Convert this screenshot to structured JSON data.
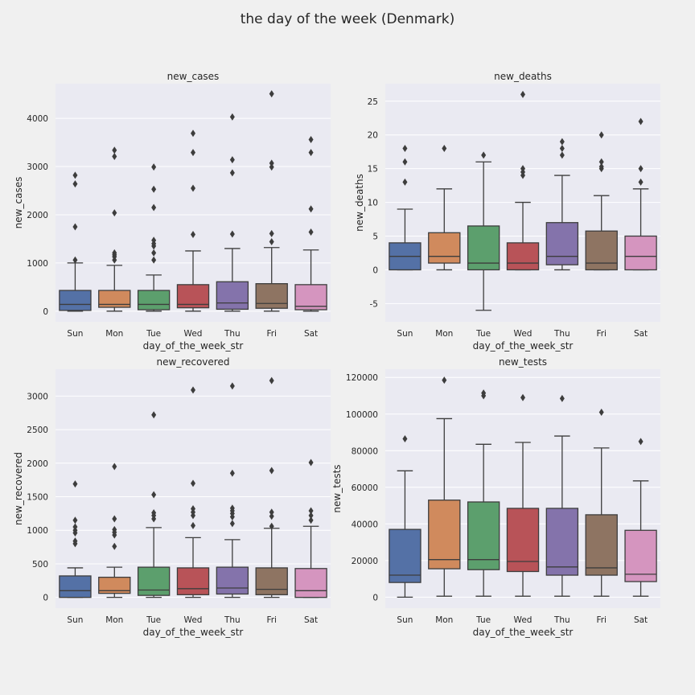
{
  "figure": {
    "title": "the day of the week (Denmark)"
  },
  "chart_data": [
    {
      "type": "box",
      "title": "new_cases",
      "xlabel": "day_of_the_week_str",
      "ylabel": "new_cases",
      "ylim": [
        -220,
        4720
      ],
      "yticks": [
        0,
        1000,
        2000,
        3000,
        4000
      ],
      "categories": [
        "Sun",
        "Mon",
        "Tue",
        "Wed",
        "Thu",
        "Fri",
        "Sat"
      ],
      "colors": [
        "#5471a6",
        "#d08a5d",
        "#5c9f6d",
        "#b85358",
        "#8473ab",
        "#8e7462",
        "#d595bf"
      ],
      "boxes": [
        {
          "whislo": 0,
          "q1": 15,
          "median": 140,
          "q3": 430,
          "whishi": 1000,
          "fliers": [
            1060,
            1750,
            2640,
            2820
          ]
        },
        {
          "whislo": 0,
          "q1": 80,
          "median": 140,
          "q3": 430,
          "whishi": 950,
          "fliers": [
            1060,
            1130,
            1170,
            1210,
            2040,
            3210,
            3340
          ]
        },
        {
          "whislo": 0,
          "q1": 30,
          "median": 140,
          "q3": 430,
          "whishi": 750,
          "fliers": [
            1060,
            1210,
            1350,
            1400,
            1470,
            2150,
            2530,
            2990
          ]
        },
        {
          "whislo": 0,
          "q1": 70,
          "median": 140,
          "q3": 550,
          "whishi": 1250,
          "fliers": [
            1590,
            2550,
            3290,
            3690
          ]
        },
        {
          "whislo": 0,
          "q1": 40,
          "median": 170,
          "q3": 610,
          "whishi": 1300,
          "fliers": [
            1600,
            2870,
            3140,
            4030
          ]
        },
        {
          "whislo": 0,
          "q1": 60,
          "median": 160,
          "q3": 570,
          "whishi": 1320,
          "fliers": [
            1440,
            1610,
            2990,
            3070,
            4510
          ]
        },
        {
          "whislo": 0,
          "q1": 30,
          "median": 100,
          "q3": 550,
          "whishi": 1270,
          "fliers": [
            1640,
            2120,
            3290,
            3560
          ]
        }
      ]
    },
    {
      "type": "box",
      "title": "new_deaths",
      "xlabel": "day_of_the_week_str",
      "ylabel": "new_deaths",
      "ylim": [
        -7.7,
        27.6
      ],
      "yticks": [
        -5,
        0,
        5,
        10,
        15,
        20,
        25
      ],
      "categories": [
        "Sun",
        "Mon",
        "Tue",
        "Wed",
        "Thu",
        "Fri",
        "Sat"
      ],
      "colors": [
        "#5471a6",
        "#d08a5d",
        "#5c9f6d",
        "#b85358",
        "#8473ab",
        "#8e7462",
        "#d595bf"
      ],
      "boxes": [
        {
          "whislo": 0,
          "q1": 0,
          "median": 2,
          "q3": 4,
          "whishi": 9,
          "fliers": [
            13,
            16,
            18
          ]
        },
        {
          "whislo": 0,
          "q1": 1,
          "median": 2,
          "q3": 5.5,
          "whishi": 12,
          "fliers": [
            18
          ]
        },
        {
          "whislo": -6,
          "q1": 0,
          "median": 1,
          "q3": 6.5,
          "whishi": 16,
          "fliers": [
            17
          ]
        },
        {
          "whislo": 0,
          "q1": 0,
          "median": 1,
          "q3": 4,
          "whishi": 10,
          "fliers": [
            14,
            14.5,
            15,
            26
          ]
        },
        {
          "whislo": 0,
          "q1": 0.75,
          "median": 2,
          "q3": 7,
          "whishi": 14,
          "fliers": [
            17,
            18,
            19
          ]
        },
        {
          "whislo": 0,
          "q1": 0,
          "median": 1,
          "q3": 5.75,
          "whishi": 11,
          "fliers": [
            15,
            15.3,
            16,
            20
          ]
        },
        {
          "whislo": 0,
          "q1": 0,
          "median": 2,
          "q3": 5,
          "whishi": 12,
          "fliers": [
            13,
            15,
            22
          ]
        }
      ]
    },
    {
      "type": "box",
      "title": "new_recovered",
      "xlabel": "day_of_the_week_str",
      "ylabel": "new_recovered",
      "ylim": [
        -160,
        3400
      ],
      "yticks": [
        0,
        500,
        1000,
        1500,
        2000,
        2500,
        3000
      ],
      "categories": [
        "Sun",
        "Mon",
        "Tue",
        "Wed",
        "Thu",
        "Fri",
        "Sat"
      ],
      "colors": [
        "#5471a6",
        "#d08a5d",
        "#5c9f6d",
        "#b85358",
        "#8473ab",
        "#8e7462",
        "#d595bf"
      ],
      "boxes": [
        {
          "whislo": 0,
          "q1": 0,
          "median": 100,
          "q3": 320,
          "whishi": 440,
          "fliers": [
            800,
            840,
            960,
            1000,
            1050,
            1150,
            1690
          ]
        },
        {
          "whislo": 0,
          "q1": 60,
          "median": 100,
          "q3": 300,
          "whishi": 450,
          "fliers": [
            760,
            930,
            970,
            1010,
            1170,
            1950
          ]
        },
        {
          "whislo": 0,
          "q1": 30,
          "median": 110,
          "q3": 450,
          "whishi": 1040,
          "fliers": [
            1170,
            1220,
            1260,
            1530,
            2720
          ]
        },
        {
          "whislo": 0,
          "q1": 40,
          "median": 130,
          "q3": 440,
          "whishi": 890,
          "fliers": [
            1070,
            1220,
            1270,
            1320,
            1700,
            3090
          ]
        },
        {
          "whislo": 0,
          "q1": 50,
          "median": 140,
          "q3": 450,
          "whishi": 860,
          "fliers": [
            1100,
            1200,
            1250,
            1290,
            1330,
            1850,
            3150
          ]
        },
        {
          "whislo": 0,
          "q1": 40,
          "median": 120,
          "q3": 440,
          "whishi": 1030,
          "fliers": [
            1060,
            1210,
            1270,
            1890,
            3230
          ]
        },
        {
          "whislo": 0,
          "q1": 0,
          "median": 100,
          "q3": 430,
          "whishi": 1060,
          "fliers": [
            1150,
            1220,
            1290,
            2010
          ]
        }
      ]
    },
    {
      "type": "box",
      "title": "new_tests",
      "xlabel": "day_of_the_week_str",
      "ylabel": "new_tests",
      "ylim": [
        -6000,
        124500
      ],
      "yticks": [
        0,
        20000,
        40000,
        60000,
        80000,
        100000,
        120000
      ],
      "categories": [
        "Sun",
        "Mon",
        "Tue",
        "Wed",
        "Thu",
        "Fri",
        "Sat"
      ],
      "colors": [
        "#5471a6",
        "#d08a5d",
        "#5c9f6d",
        "#b85358",
        "#8473ab",
        "#8e7462",
        "#d595bf"
      ],
      "boxes": [
        {
          "whislo": 0,
          "q1": 8000,
          "median": 12000,
          "q3": 37000,
          "whishi": 69000,
          "fliers": [
            86500
          ]
        },
        {
          "whislo": 500,
          "q1": 15500,
          "median": 20500,
          "q3": 53000,
          "whishi": 97500,
          "fliers": [
            118500
          ]
        },
        {
          "whislo": 500,
          "q1": 15000,
          "median": 20500,
          "q3": 52000,
          "whishi": 83500,
          "fliers": [
            110000,
            111500
          ]
        },
        {
          "whislo": 500,
          "q1": 14000,
          "median": 19500,
          "q3": 48500,
          "whishi": 84500,
          "fliers": [
            109000
          ]
        },
        {
          "whislo": 500,
          "q1": 12000,
          "median": 16500,
          "q3": 48500,
          "whishi": 88000,
          "fliers": [
            108500
          ]
        },
        {
          "whislo": 500,
          "q1": 12000,
          "median": 16000,
          "q3": 45000,
          "whishi": 81500,
          "fliers": [
            101000
          ]
        },
        {
          "whislo": 500,
          "q1": 8500,
          "median": 12500,
          "q3": 36500,
          "whishi": 63500,
          "fliers": [
            85000
          ]
        }
      ]
    }
  ]
}
